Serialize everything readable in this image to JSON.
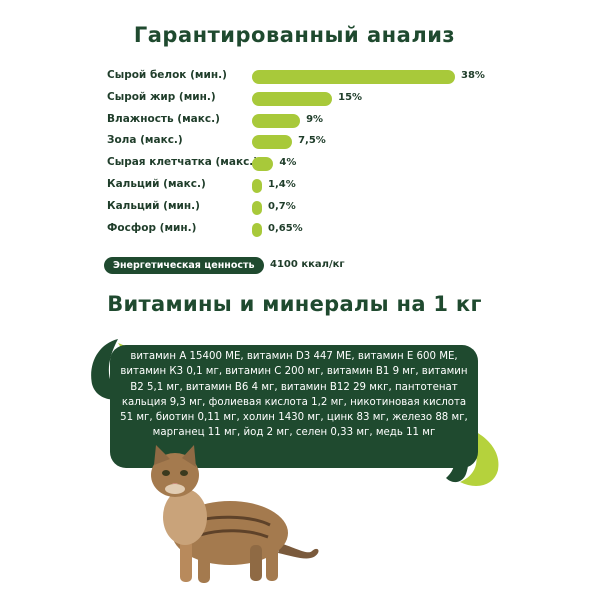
{
  "analysis": {
    "title": "Гарантированный анализ",
    "items": [
      {
        "label": "Сырой белок (мин.)",
        "value": "38%",
        "fraction": 0.38
      },
      {
        "label": "Сырой жир (мин.)",
        "value": "15%",
        "fraction": 0.15
      },
      {
        "label": "Влажность (макс.)",
        "value": "9%",
        "fraction": 0.09
      },
      {
        "label": "Зола (макс.)",
        "value": "7,5%",
        "fraction": 0.075
      },
      {
        "label": "Сырая клетчатка (макс.)",
        "value": "4%",
        "fraction": 0.04
      },
      {
        "label": "Кальций (макс.)",
        "value": "1,4%",
        "fraction": 0.014
      },
      {
        "label": "Кальций (мин.)",
        "value": "0,7%",
        "fraction": 0.007
      },
      {
        "label": "Фосфор (мин.)",
        "value": "0,65%",
        "fraction": 0.0065
      }
    ],
    "energy_label": "Энергетическая ценность",
    "energy_value": "4100 ккал/кг"
  },
  "vitamins": {
    "title": "Витамины и минералы на 1 кг",
    "text": "витамин А 15400 МЕ, витамин D3 447 МЕ, витамин Е 600 МЕ, витамин К3 0,1 мг, витамин С 200 мг, витамин В1 9 мг, витамин В2 5,1 мг, витамин В6 4 мг, витамин В12 29 мкг, пантотенат кальция 9,3 мг, фолиевая кислота 1,2 мг, никотиновая кислота 51 мг, биотин 0,11 мг, холин 1430 мг, цинк 83 мг, железо 88 мг, марганец 11 мг, йод 2 мг, селен 0,33 мг, медь 11 мг"
  },
  "colors": {
    "bar": "#a8c93a",
    "dark_green": "#1f4a2f",
    "text": "#1f3d2a"
  }
}
